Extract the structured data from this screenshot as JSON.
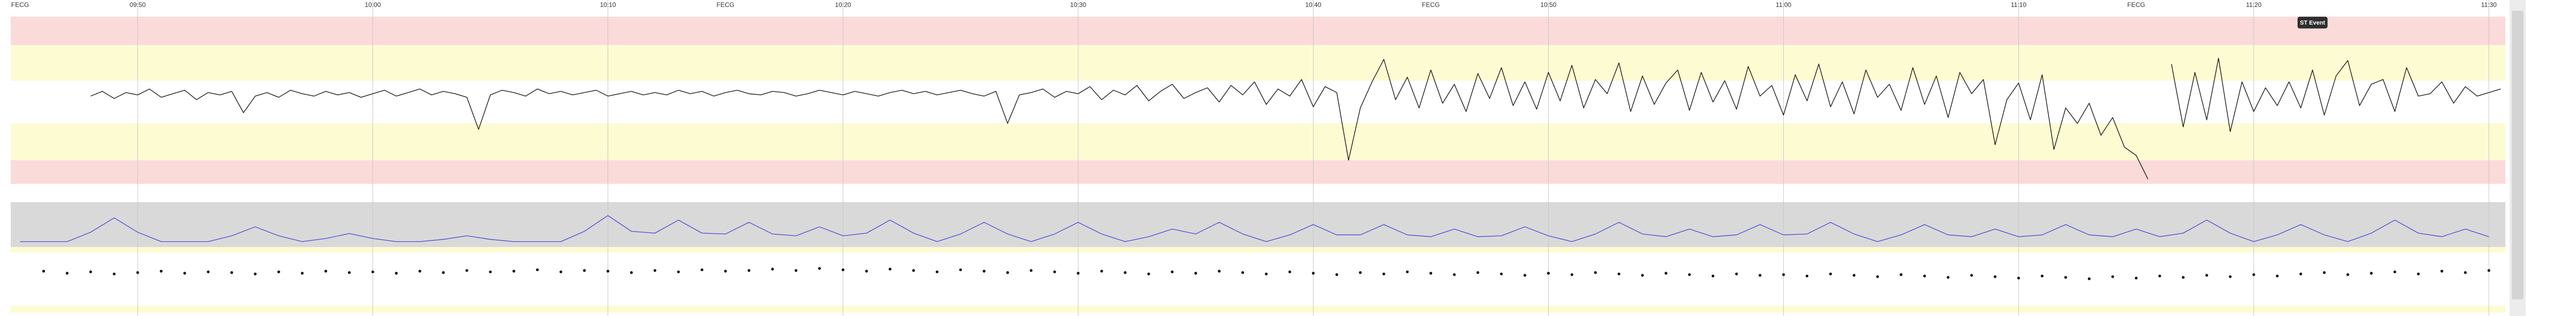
{
  "chart_data": [
    {
      "type": "line",
      "color": "#111111",
      "xlim": [
        584.6,
        690.7
      ],
      "ylim": [
        50,
        210
      ],
      "xticks": [
        {
          "value": 590,
          "label": "09:50"
        },
        {
          "value": 600,
          "label": "10:00"
        },
        {
          "value": 610,
          "label": "10:10"
        },
        {
          "value": 620,
          "label": "10:20"
        },
        {
          "value": 630,
          "label": "10:30"
        },
        {
          "value": 640,
          "label": "10:40"
        },
        {
          "value": 650,
          "label": "10:50"
        },
        {
          "value": 660,
          "label": "11:00"
        },
        {
          "value": 670,
          "label": "11:10"
        },
        {
          "value": 680,
          "label": "11:20"
        },
        {
          "value": 690,
          "label": "11:30"
        }
      ],
      "grid": true,
      "bands": [
        {
          "from": 181,
          "to": 205,
          "color": "#fbdada"
        },
        {
          "from": 151,
          "to": 181,
          "color": "#fdfbd2"
        },
        {
          "from": 84,
          "to": 115,
          "color": "#fdfbd2"
        },
        {
          "from": 64,
          "to": 84,
          "color": "#fbdada"
        }
      ],
      "annotations": [
        {
          "text": "FECG",
          "x": 585
        },
        {
          "text": "FECG",
          "x": 615
        },
        {
          "text": "FECG",
          "x": 645
        },
        {
          "text": "FECG",
          "x": 675
        }
      ],
      "events": [
        {
          "label": "ST Event",
          "x": 682.5,
          "y": 200
        }
      ],
      "x": [
        588,
        588.5,
        589,
        589.5,
        590,
        590.5,
        591,
        591.5,
        592,
        592.5,
        593,
        593.5,
        594,
        594.5,
        595,
        595.5,
        596,
        596.5,
        597,
        597.5,
        598,
        598.5,
        599,
        599.5,
        600,
        600.5,
        601,
        601.5,
        602,
        602.5,
        603,
        603.5,
        604,
        604.5,
        605,
        605.5,
        606,
        606.5,
        607,
        607.5,
        608,
        608.5,
        609,
        609.5,
        610,
        610.5,
        611,
        611.5,
        612,
        612.5,
        613,
        613.5,
        614,
        614.5,
        615,
        615.5,
        616,
        616.5,
        617,
        617.5,
        618,
        618.5,
        619,
        619.5,
        620,
        620.5,
        621,
        621.5,
        622,
        622.5,
        623,
        623.5,
        624,
        624.5,
        625,
        625.5,
        626,
        626.5,
        627,
        627.5,
        628,
        628.5,
        629,
        629.5,
        630,
        630.5,
        631,
        631.5,
        632,
        632.5,
        633,
        633.5,
        634,
        634.5,
        635,
        635.5,
        636,
        636.5,
        637,
        637.5,
        638,
        638.5,
        639,
        639.5,
        640,
        640.5,
        641,
        641.5,
        642,
        642.5,
        643,
        643.5,
        644,
        644.5,
        645,
        645.5,
        646,
        646.5,
        647,
        647.5,
        648,
        648.5,
        649,
        649.5,
        650,
        650.5,
        651,
        651.5,
        652,
        652.5,
        653,
        653.5,
        654,
        654.5,
        655,
        655.5,
        656,
        656.5,
        657,
        657.5,
        658,
        658.5,
        659,
        659.5,
        660,
        660.5,
        661,
        661.5,
        662,
        662.5,
        663,
        663.5,
        664,
        664.5,
        665,
        665.5,
        666,
        666.5,
        667,
        667.5,
        668,
        668.5,
        669,
        669.5,
        670,
        670.5,
        671,
        671.5,
        672,
        672.5,
        673,
        673.5,
        674,
        674.5,
        675,
        675.5,
        676,
        676.5,
        677,
        677.5,
        678,
        678.5,
        679,
        679.5,
        680,
        680.5,
        681,
        681.5,
        682,
        682.5,
        683,
        683.5,
        684,
        684.5,
        685,
        685.5,
        686,
        686.5,
        687,
        687.5,
        688,
        688.5,
        689,
        689.5,
        690,
        690.5
      ],
      "values": [
        138,
        142,
        136,
        141,
        139,
        144,
        137,
        140,
        143,
        135,
        141,
        139,
        142,
        124,
        138,
        141,
        137,
        143,
        140,
        138,
        142,
        139,
        141,
        137,
        140,
        143,
        138,
        141,
        144,
        139,
        142,
        140,
        137,
        110,
        139,
        143,
        141,
        138,
        144,
        140,
        142,
        139,
        141,
        143,
        138,
        140,
        142,
        139,
        141,
        139,
        143,
        140,
        142,
        138,
        141,
        143,
        140,
        139,
        142,
        141,
        138,
        140,
        143,
        141,
        139,
        142,
        140,
        138,
        141,
        143,
        140,
        142,
        139,
        141,
        143,
        140,
        138,
        142,
        115,
        139,
        141,
        144,
        137,
        142,
        140,
        146,
        135,
        143,
        139,
        147,
        134,
        142,
        148,
        136,
        141,
        145,
        133,
        147,
        139,
        150,
        131,
        144,
        138,
        152,
        129,
        146,
        141,
        84,
        128,
        150,
        169,
        135,
        154,
        128,
        160,
        132,
        148,
        125,
        157,
        136,
        162,
        130,
        150,
        127,
        158,
        134,
        164,
        128,
        152,
        140,
        166,
        125,
        155,
        131,
        149,
        160,
        126,
        158,
        133,
        151,
        127,
        163,
        138,
        147,
        122,
        156,
        134,
        165,
        129,
        150,
        123,
        160,
        137,
        148,
        126,
        162,
        131,
        155,
        120,
        158,
        140,
        152,
        97,
        135,
        149,
        118,
        156,
        93,
        128,
        115,
        132,
        105,
        120,
        95,
        88,
        68,
        null,
        165,
        112,
        158,
        118,
        170,
        108,
        150,
        125,
        145,
        130,
        150,
        128,
        160,
        122,
        155,
        168,
        130,
        148,
        152,
        125,
        162,
        138,
        140,
        150,
        132,
        146,
        138,
        141,
        144
      ]
    },
    {
      "type": "line",
      "color": "#4a4ad8",
      "xlim": [
        584.6,
        690.7
      ],
      "ylim": [
        0,
        100
      ],
      "background": "#d9d9d9",
      "x": [
        585,
        586,
        587,
        588,
        589,
        590,
        591,
        592,
        593,
        594,
        595,
        596,
        597,
        598,
        599,
        600,
        601,
        602,
        603,
        604,
        605,
        606,
        607,
        608,
        609,
        610,
        611,
        612,
        613,
        614,
        615,
        616,
        617,
        618,
        619,
        620,
        621,
        622,
        623,
        624,
        625,
        626,
        627,
        628,
        629,
        630,
        631,
        632,
        633,
        634,
        635,
        636,
        637,
        638,
        639,
        640,
        641,
        642,
        643,
        644,
        645,
        646,
        647,
        648,
        649,
        650,
        651,
        652,
        653,
        654,
        655,
        656,
        657,
        658,
        659,
        660,
        661,
        662,
        663,
        664,
        665,
        666,
        667,
        668,
        669,
        670,
        671,
        672,
        673,
        674,
        675,
        676,
        677,
        678,
        679,
        680,
        681,
        682,
        683,
        684,
        685,
        686,
        687,
        688,
        689,
        690
      ],
      "values": [
        12,
        12,
        12,
        33,
        65,
        33,
        12,
        12,
        12,
        25,
        45,
        25,
        12,
        19,
        30,
        19,
        12,
        12,
        17,
        25,
        17,
        12,
        12,
        12,
        35,
        70,
        35,
        31,
        60,
        31,
        29,
        55,
        29,
        25,
        45,
        25,
        31,
        60,
        31,
        12,
        29,
        55,
        29,
        12,
        29,
        55,
        29,
        12,
        23,
        40,
        29,
        55,
        29,
        12,
        27,
        50,
        27,
        27,
        50,
        27,
        23,
        40,
        23,
        25,
        45,
        25,
        12,
        29,
        55,
        29,
        23,
        40,
        23,
        27,
        50,
        27,
        29,
        55,
        29,
        12,
        27,
        50,
        27,
        23,
        40,
        23,
        27,
        50,
        27,
        23,
        40,
        23,
        31,
        60,
        31,
        12,
        27,
        50,
        27,
        12,
        31,
        60,
        31,
        23,
        40,
        23
      ]
    },
    {
      "type": "scatter",
      "color": "#111111",
      "xlim": [
        584.6,
        690.7
      ],
      "ylim": [
        30,
        130
      ],
      "bands": [
        {
          "from": 122,
          "to": 130,
          "color": "#fdfbd2"
        },
        {
          "from": 35,
          "to": 45,
          "color": "#fdfbd2"
        }
      ],
      "x": [
        586,
        587,
        588,
        589,
        590,
        591,
        592,
        593,
        594,
        595,
        596,
        597,
        598,
        599,
        600,
        601,
        602,
        603,
        604,
        605,
        606,
        607,
        608,
        609,
        610,
        611,
        612,
        613,
        614,
        615,
        616,
        617,
        618,
        619,
        620,
        621,
        622,
        623,
        624,
        625,
        626,
        627,
        628,
        629,
        630,
        631,
        632,
        633,
        634,
        635,
        636,
        637,
        638,
        639,
        640,
        641,
        642,
        643,
        644,
        645,
        646,
        647,
        648,
        649,
        650,
        651,
        652,
        653,
        654,
        655,
        656,
        657,
        658,
        659,
        660,
        661,
        662,
        663,
        664,
        665,
        666,
        667,
        668,
        669,
        670,
        671,
        672,
        673,
        674,
        675,
        676,
        677,
        678,
        679,
        680,
        681,
        682,
        683,
        684,
        685,
        686,
        687,
        688,
        689,
        690
      ],
      "values": [
        95,
        92,
        94,
        91,
        93,
        95,
        92,
        94,
        93,
        91,
        94,
        92,
        95,
        93,
        94,
        92,
        95,
        93,
        96,
        94,
        95,
        97,
        94,
        96,
        95,
        93,
        96,
        94,
        97,
        95,
        96,
        98,
        96,
        99,
        97,
        95,
        98,
        96,
        94,
        97,
        95,
        93,
        96,
        94,
        92,
        95,
        93,
        91,
        94,
        92,
        95,
        93,
        91,
        94,
        92,
        90,
        93,
        91,
        94,
        92,
        90,
        93,
        91,
        89,
        92,
        90,
        93,
        91,
        89,
        92,
        90,
        88,
        91,
        89,
        90,
        88,
        91,
        89,
        87,
        90,
        88,
        86,
        89,
        87,
        85,
        88,
        86,
        84,
        87,
        85,
        88,
        86,
        89,
        87,
        90,
        88,
        91,
        93,
        90,
        92,
        94,
        91,
        95,
        93,
        96
      ]
    }
  ]
}
